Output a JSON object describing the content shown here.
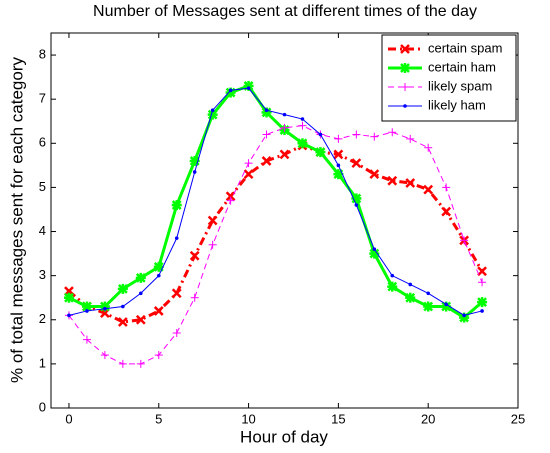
{
  "chart_data": {
    "type": "line",
    "title": "Number of Messages sent at different times of the day",
    "xlabel": "Hour of day",
    "ylabel": "% of total messages sent for each category",
    "x": [
      0,
      1,
      2,
      3,
      4,
      5,
      6,
      7,
      8,
      9,
      10,
      11,
      12,
      13,
      14,
      15,
      16,
      17,
      18,
      19,
      20,
      21,
      22,
      23
    ],
    "series": [
      {
        "name": "certain spam",
        "color": "#ff0000",
        "width": 3,
        "dash": "dashdot",
        "marker": "x",
        "values": [
          2.65,
          2.3,
          2.15,
          1.95,
          2.0,
          2.2,
          2.6,
          3.45,
          4.25,
          4.8,
          5.3,
          5.6,
          5.75,
          5.95,
          5.8,
          5.75,
          5.55,
          5.3,
          5.15,
          5.1,
          4.95,
          4.45,
          3.8,
          3.1
        ]
      },
      {
        "name": "certain ham",
        "color": "#00ff00",
        "width": 3,
        "dash": "solid",
        "marker": "star",
        "values": [
          2.5,
          2.3,
          2.3,
          2.7,
          2.95,
          3.2,
          4.6,
          5.6,
          6.65,
          7.15,
          7.3,
          6.7,
          6.3,
          6.0,
          5.8,
          5.3,
          4.75,
          3.5,
          2.75,
          2.5,
          2.3,
          2.3,
          2.05,
          2.4
        ]
      },
      {
        "name": "likely spam",
        "color": "#ff00ff",
        "width": 1,
        "dash": "dashed",
        "marker": "plus",
        "values": [
          2.1,
          1.55,
          1.2,
          1.0,
          1.0,
          1.2,
          1.7,
          2.5,
          3.7,
          4.7,
          5.55,
          6.2,
          6.35,
          6.4,
          6.2,
          6.1,
          6.2,
          6.15,
          6.25,
          6.1,
          5.9,
          5.0,
          3.8,
          2.85
        ]
      },
      {
        "name": "likely ham",
        "color": "#0000ff",
        "width": 1,
        "dash": "solid",
        "marker": "dot",
        "values": [
          2.1,
          2.2,
          2.25,
          2.3,
          2.6,
          3.0,
          3.85,
          5.35,
          6.75,
          7.2,
          7.25,
          6.75,
          6.65,
          6.55,
          6.2,
          5.5,
          4.6,
          3.6,
          3.0,
          2.8,
          2.6,
          2.35,
          2.1,
          2.2
        ]
      }
    ],
    "xlim": [
      -1,
      25
    ],
    "xticks": [
      0,
      5,
      10,
      15,
      20,
      25
    ],
    "ylim": [
      0,
      8.5
    ],
    "yticks": [
      0,
      1,
      2,
      3,
      4,
      5,
      6,
      7,
      8
    ],
    "grid": false,
    "legend": "upper right"
  }
}
